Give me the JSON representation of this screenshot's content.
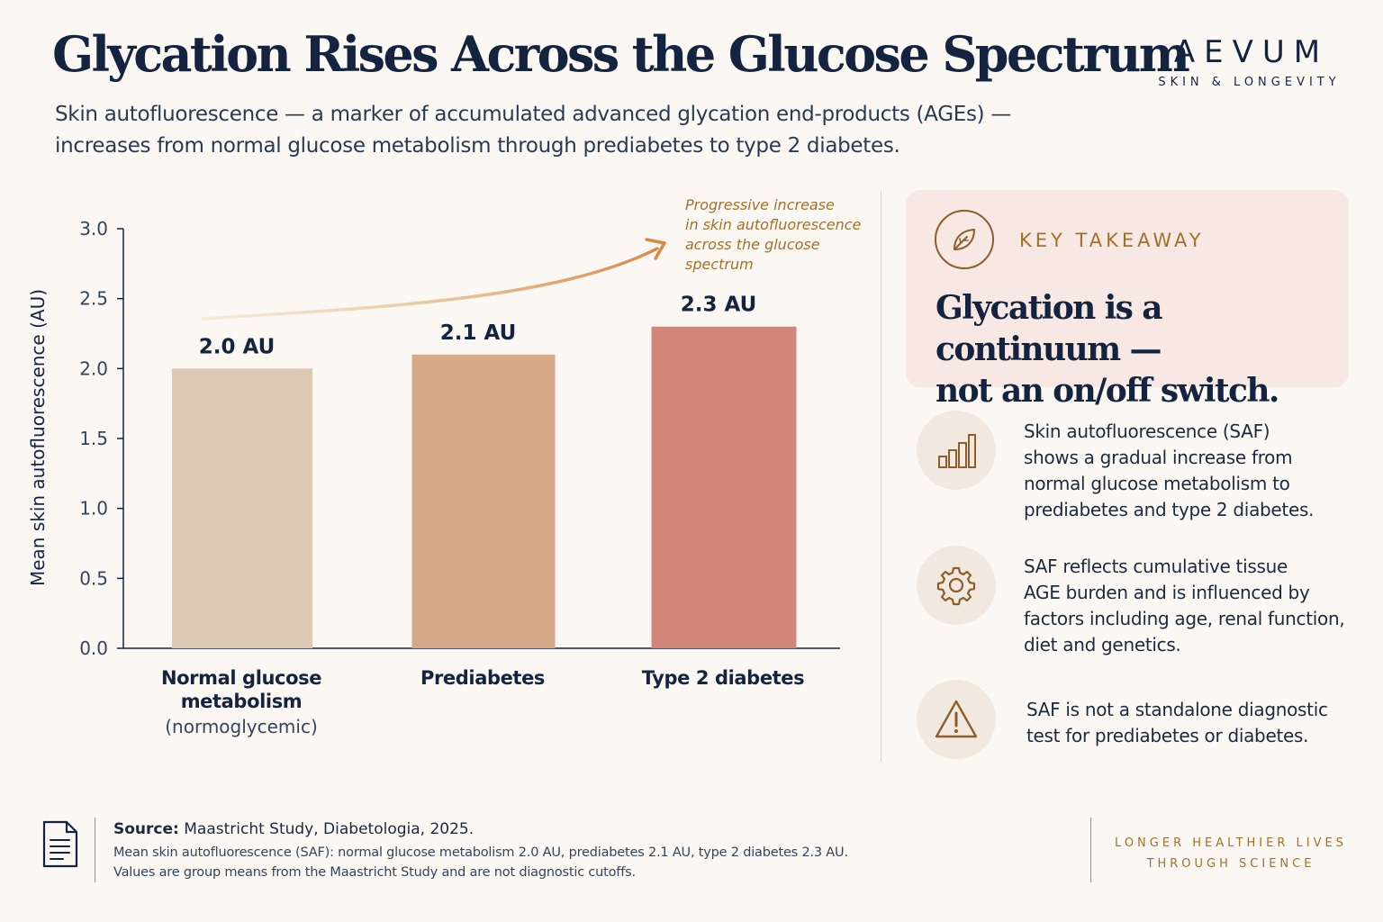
{
  "header": {
    "title": "Glycation Rises Across the Glucose Spectrum",
    "subtitle_line1": "Skin autofluorescence — a marker of accumulated advanced glycation end-products (AGEs) —",
    "subtitle_line2": "increases from normal glucose metabolism through prediabetes to type 2 diabetes."
  },
  "brand": {
    "name": "AEVUM",
    "tagline": "SKIN & LONGEVITY"
  },
  "chart_data": {
    "type": "bar",
    "categories": [
      "Normal glucose metabolism (normoglycemic)",
      "Prediabetes",
      "Type 2 diabetes"
    ],
    "category_lines": [
      {
        "main": [
          "Normal glucose",
          "metabolism"
        ],
        "sub": "(normoglycemic)"
      },
      {
        "main": [
          "Prediabetes"
        ],
        "sub": ""
      },
      {
        "main": [
          "Type 2 diabetes"
        ],
        "sub": ""
      }
    ],
    "values": [
      2.0,
      2.1,
      2.3
    ],
    "data_labels": [
      "2.0 AU",
      "2.1 AU",
      "2.3 AU"
    ],
    "bar_colors": [
      "#dbc9b3",
      "#d5a887",
      "#d4857a"
    ],
    "ylabel": "Mean skin autofluorescence (AU)",
    "ylim": [
      0,
      3.0
    ],
    "yticks": [
      "0.0",
      "0.5",
      "1.0",
      "1.5",
      "2.0",
      "2.5",
      "3.0"
    ],
    "annotation": [
      "Progressive increase",
      "in skin autofluorescence",
      "across the glucose",
      "spectrum"
    ],
    "grid": false
  },
  "takeaway": {
    "label": "KEY TAKEAWAY",
    "line1": "Glycation is a continuum —",
    "line2": "not an on/off switch.",
    "icon": "leaf-icon"
  },
  "points": [
    {
      "icon": "bar-chart-icon",
      "lines": [
        "Skin autofluorescence (SAF)",
        "shows a gradual increase from",
        "normal glucose metabolism to",
        "prediabetes and type 2 diabetes."
      ]
    },
    {
      "icon": "gear-icon",
      "lines": [
        "SAF reflects cumulative tissue",
        "AGE burden and is influenced by",
        "factors including age, renal function,",
        "diet and genetics."
      ]
    },
    {
      "icon": "warning-icon",
      "lines": [
        "SAF is not a standalone diagnostic",
        "test for prediabetes or diabetes."
      ]
    }
  ],
  "source": {
    "label": "Source:",
    "text": "Maastricht Study, Diabetologia, 2025.",
    "detail1": "Mean skin autofluorescence (SAF): normal glucose metabolism 2.0 AU, prediabetes 2.1 AU, type 2 diabetes 2.3 AU.",
    "detail2": "Values are group means from the Maastricht Study and are not diagnostic cutoffs."
  },
  "footer": {
    "line1": "LONGER HEALTHIER LIVES",
    "line2": "THROUGH SCIENCE"
  },
  "colors": {
    "navy": "#142440",
    "accent": "#a3702a",
    "panel": "#f8e8e3"
  }
}
